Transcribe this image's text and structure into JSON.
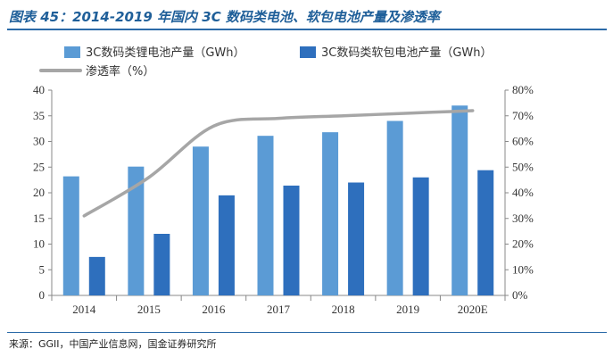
{
  "title": "图表 45：2014-2019 年国内 3C 数码类电池、软包电池产量及渗透率",
  "source": "来源：GGII，中国产业信息网，国金证券研究所",
  "chart_data": {
    "type": "bar",
    "categories": [
      "2014",
      "2015",
      "2016",
      "2017",
      "2018",
      "2019",
      "2020E"
    ],
    "series": [
      {
        "name": "3C数码类锂电池产量（GWh）",
        "kind": "bar",
        "axis": "left",
        "color": "#5b9bd5",
        "values": [
          23.2,
          25.1,
          29.0,
          31.1,
          31.8,
          34.0,
          37.0
        ]
      },
      {
        "name": "3C数码类软包电池产量（GWh）",
        "kind": "bar",
        "axis": "left",
        "color": "#2e6fbd",
        "values": [
          7.5,
          12.0,
          19.5,
          21.4,
          22.0,
          23.0,
          24.4
        ]
      },
      {
        "name": "渗透率（%）",
        "kind": "line",
        "axis": "right",
        "color": "#a6a6a6",
        "values": [
          31,
          46,
          66,
          69,
          70,
          71,
          72
        ]
      }
    ],
    "yleft": {
      "min": 0,
      "max": 40,
      "step": 5,
      "ticks": [
        "0",
        "5",
        "10",
        "15",
        "20",
        "25",
        "30",
        "35",
        "40"
      ]
    },
    "yright": {
      "min": 0,
      "max": 80,
      "step": 10,
      "ticks": [
        "0%",
        "10%",
        "20%",
        "30%",
        "40%",
        "50%",
        "60%",
        "70%",
        "80%"
      ]
    },
    "grid": false,
    "legend_position": "top"
  }
}
